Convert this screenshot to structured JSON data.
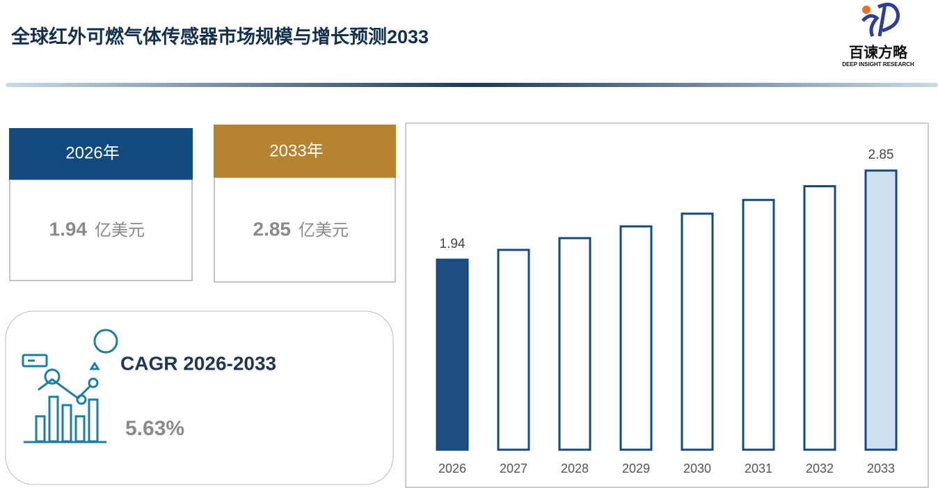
{
  "header": {
    "title": "全球红外可燃气体传感器市场规模与增长预测2033",
    "logo_name": "百谏方略",
    "logo_tagline": "DEEP INSIGHT RESEARCH"
  },
  "cards": [
    {
      "label": "2026年",
      "value": "1.94",
      "unit": "亿美元"
    },
    {
      "label": "2033年",
      "value": "2.85",
      "unit": "亿美元"
    }
  ],
  "cagr": {
    "title": "CAGR 2026-2033",
    "value": "5.63%"
  },
  "chart_data": {
    "type": "bar",
    "categories": [
      "2026",
      "2027",
      "2028",
      "2029",
      "2030",
      "2031",
      "2032",
      "2033"
    ],
    "values": [
      1.94,
      2.04,
      2.16,
      2.28,
      2.41,
      2.55,
      2.69,
      2.85
    ],
    "value_labels": [
      "1.94",
      null,
      null,
      null,
      null,
      null,
      null,
      "2.85"
    ],
    "colors": [
      "#1f4e82",
      "#ffffff",
      "#ffffff",
      "#ffffff",
      "#ffffff",
      "#ffffff",
      "#ffffff",
      "#cfe0f3"
    ],
    "edge_color": "#154a7e"
  }
}
